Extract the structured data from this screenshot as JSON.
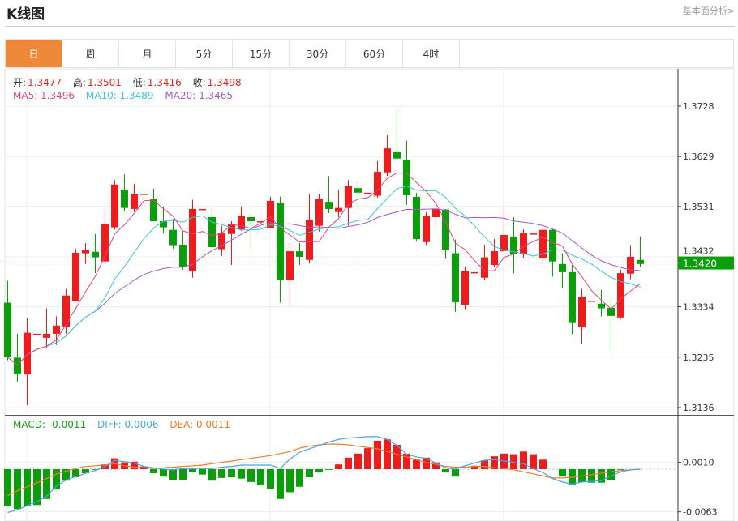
{
  "header": {
    "title": "K线图",
    "link": "基本面分析>"
  },
  "tabs": [
    {
      "label": "日",
      "active": true
    },
    {
      "label": "周"
    },
    {
      "label": "月"
    },
    {
      "label": "5分"
    },
    {
      "label": "15分"
    },
    {
      "label": "30分"
    },
    {
      "label": "60分"
    },
    {
      "label": "4时"
    }
  ],
  "legend": {
    "open_label": "开:",
    "open": "1.3477",
    "high_label": "高:",
    "high": "1.3501",
    "low_label": "低:",
    "low": "1.3416",
    "close_label": "收:",
    "close": "1.3498",
    "ma5": "MA5: 1.3496",
    "ma10": "MA10: 1.3489",
    "ma20": "MA20: 1.3465"
  },
  "macd_legend": {
    "macd": "MACD: -0.0011",
    "diff": "DIFF: 0.0006",
    "dea": "DEA: 0.0011"
  },
  "colors": {
    "up": "#ee1c1c",
    "down": "#0a9e0a",
    "ma5": "#e0457b",
    "ma10": "#3cc6d6",
    "ma20": "#a05bc4",
    "diff": "#4aa3df",
    "dea": "#f07d2a",
    "tab_active": "#f0883a"
  },
  "chart_data": {
    "type": "candlestick",
    "price_axis": {
      "ticks": [
        "1.3728",
        "1.3629",
        "1.3531",
        "1.3432",
        "1.3334",
        "1.3235",
        "1.3136"
      ],
      "range": [
        1.3136,
        1.3728
      ]
    },
    "current_price": "1.3420",
    "ohlc": [
      [
        1.3342,
        1.3385,
        1.3229,
        1.3235
      ],
      [
        1.3234,
        1.3281,
        1.3186,
        1.3203
      ],
      [
        1.3201,
        1.3311,
        1.3141,
        1.3283
      ],
      [
        1.3281,
        1.3281,
        1.3281,
        1.3281
      ],
      [
        1.3273,
        1.3331,
        1.3253,
        1.3281
      ],
      [
        1.3281,
        1.3315,
        1.3259,
        1.3297
      ],
      [
        1.3294,
        1.3369,
        1.3281,
        1.3356
      ],
      [
        1.3346,
        1.3448,
        1.3346,
        1.344
      ],
      [
        1.3439,
        1.3459,
        1.3418,
        1.3445
      ],
      [
        1.3442,
        1.3477,
        1.34,
        1.3431
      ],
      [
        1.3423,
        1.3523,
        1.3423,
        1.3497
      ],
      [
        1.349,
        1.3583,
        1.3486,
        1.3574
      ],
      [
        1.3564,
        1.3594,
        1.3521,
        1.3528
      ],
      [
        1.3526,
        1.3575,
        1.352,
        1.3556
      ],
      [
        1.3556,
        1.3556,
        1.3556,
        1.3556
      ],
      [
        1.3545,
        1.3566,
        1.3502,
        1.3502
      ],
      [
        1.3502,
        1.3531,
        1.3478,
        1.349
      ],
      [
        1.3485,
        1.3507,
        1.3448,
        1.3455
      ],
      [
        1.3456,
        1.3483,
        1.3407,
        1.3412
      ],
      [
        1.3405,
        1.3544,
        1.3391,
        1.3526
      ],
      [
        1.3526,
        1.3526,
        1.3526,
        1.3526
      ],
      [
        1.351,
        1.3528,
        1.3447,
        1.3451
      ],
      [
        1.3447,
        1.3493,
        1.3434,
        1.3478
      ],
      [
        1.3477,
        1.3502,
        1.3416,
        1.3497
      ],
      [
        1.3486,
        1.3531,
        1.3483,
        1.3512
      ],
      [
        1.351,
        1.3517,
        1.3447,
        1.3502
      ],
      [
        1.3502,
        1.3502,
        1.3502,
        1.3502
      ],
      [
        1.3488,
        1.355,
        1.3488,
        1.3542
      ],
      [
        1.3537,
        1.355,
        1.3342,
        1.3386
      ],
      [
        1.3386,
        1.3459,
        1.3334,
        1.3443
      ],
      [
        1.3443,
        1.3459,
        1.3416,
        1.3432
      ],
      [
        1.3426,
        1.3555,
        1.3419,
        1.3505
      ],
      [
        1.3493,
        1.3556,
        1.3482,
        1.3545
      ],
      [
        1.354,
        1.3591,
        1.3518,
        1.3526
      ],
      [
        1.352,
        1.3564,
        1.351,
        1.3528
      ],
      [
        1.3528,
        1.3583,
        1.3493,
        1.3571
      ],
      [
        1.3567,
        1.358,
        1.3525,
        1.3558
      ],
      [
        1.3558,
        1.3558,
        1.3558,
        1.3558
      ],
      [
        1.3552,
        1.362,
        1.3548,
        1.3599
      ],
      [
        1.3598,
        1.3671,
        1.3591,
        1.3645
      ],
      [
        1.3639,
        1.3726,
        1.362,
        1.3625
      ],
      [
        1.3622,
        1.366,
        1.3534,
        1.3553
      ],
      [
        1.355,
        1.3558,
        1.3463,
        1.3467
      ],
      [
        1.3461,
        1.352,
        1.3455,
        1.3513
      ],
      [
        1.351,
        1.3534,
        1.3488,
        1.3526
      ],
      [
        1.3525,
        1.3526,
        1.3428,
        1.3445
      ],
      [
        1.3439,
        1.3466,
        1.3324,
        1.3343
      ],
      [
        1.3338,
        1.3413,
        1.3329,
        1.3404
      ],
      [
        1.3402,
        1.3402,
        1.3402,
        1.3402
      ],
      [
        1.3391,
        1.3456,
        1.3386,
        1.3431
      ],
      [
        1.3416,
        1.3467,
        1.3412,
        1.3443
      ],
      [
        1.3443,
        1.3528,
        1.3439,
        1.3475
      ],
      [
        1.3472,
        1.351,
        1.34,
        1.3437
      ],
      [
        1.3437,
        1.3486,
        1.3429,
        1.3478
      ],
      [
        1.3478,
        1.3478,
        1.3478,
        1.3478
      ],
      [
        1.3429,
        1.3488,
        1.3416,
        1.3485
      ],
      [
        1.3485,
        1.3486,
        1.3393,
        1.3423
      ],
      [
        1.3418,
        1.3439,
        1.337,
        1.3402
      ],
      [
        1.3402,
        1.3416,
        1.328,
        1.3302
      ],
      [
        1.3294,
        1.3369,
        1.3262,
        1.3354
      ],
      [
        1.3346,
        1.3346,
        1.3346,
        1.3346
      ],
      [
        1.334,
        1.3367,
        1.3315,
        1.3331
      ],
      [
        1.3332,
        1.3353,
        1.3248,
        1.3316
      ],
      [
        1.3313,
        1.3407,
        1.331,
        1.34
      ],
      [
        1.3399,
        1.3455,
        1.3388,
        1.3432
      ],
      [
        1.3426,
        1.3472,
        1.3412,
        1.3418
      ]
    ],
    "moving_averages": [
      "MA5",
      "MA10",
      "MA20"
    ],
    "macd": {
      "axis": {
        "ticks": [
          "0.0010",
          "-0.0063"
        ],
        "range": [
          -0.0063,
          0.001
        ]
      },
      "histogram": [
        -0.0054,
        -0.0059,
        -0.0054,
        -0.0053,
        -0.0044,
        -0.003,
        -0.0017,
        -0.0012,
        -0.0006,
        -0.0001,
        0.0007,
        0.0016,
        0.001,
        0.0011,
        0.0004,
        -0.0006,
        -0.0011,
        -0.0016,
        -0.0016,
        -0.0004,
        -0.0008,
        -0.0017,
        -0.0013,
        -0.0012,
        -0.0014,
        -0.0019,
        -0.0024,
        -0.0029,
        -0.0044,
        -0.0034,
        -0.0026,
        -0.0012,
        -0.0005,
        -0.0001,
        0.0007,
        0.0017,
        0.0023,
        0.0031,
        0.0042,
        0.0044,
        0.0036,
        0.0023,
        0.0014,
        0.0017,
        0.001,
        -0.0005,
        -0.0011,
        0,
        0.0005,
        0.0013,
        0.0019,
        0.0023,
        0.0022,
        0.0026,
        0.0022,
        0.0014,
        0,
        -0.0011,
        -0.0023,
        -0.0019,
        -0.002,
        -0.002,
        -0.0016,
        -0.0001,
        0,
        0
      ],
      "diff": [
        -0.0064,
        -0.006,
        -0.0054,
        -0.0048,
        -0.004,
        -0.0025,
        -0.0016,
        -0.0011,
        -0.0006,
        -0.0002,
        0.0004,
        0.0013,
        0.0011,
        0.0009,
        0.0004,
        0.0002,
        0,
        -0.0001,
        0.0001,
        0.0001,
        0.0001,
        0.0001,
        0.0003,
        0.0004,
        0.0006,
        0.0006,
        0.0006,
        0.0006,
        0.0001,
        0.0015,
        0.0025,
        0.003,
        0.0035,
        0.004,
        0.0044,
        0.0046,
        0.0047,
        0.0048,
        0.0048,
        0.0044,
        0.0035,
        0.0022,
        0.0018,
        0.0016,
        0.0009,
        0.0002,
        0,
        0.0005,
        0.0009,
        0.0013,
        0.0014,
        0.0012,
        0.001,
        0.0008,
        0.0001,
        -0.0005,
        -0.0014,
        -0.0019,
        -0.0022,
        -0.0019,
        -0.0018,
        -0.0017,
        -0.001,
        -0.0004,
        -0.0001,
        0
      ],
      "dea": [
        -0.0039,
        -0.0032,
        -0.0026,
        -0.002,
        -0.0014,
        -0.0007,
        -0.0003,
        0.0001,
        0.0004,
        0.0005,
        0.0006,
        0.0008,
        0.0005,
        0.0003,
        0.0002,
        0.0001,
        0.0002,
        0.0003,
        0.0004,
        0.0005,
        0.0006,
        0.0008,
        0.001,
        0.0012,
        0.0014,
        0.0016,
        0.0018,
        0.002,
        0.0023,
        0.0026,
        0.0031,
        0.0034,
        0.0036,
        0.0037,
        0.0037,
        0.0036,
        0.0034,
        0.0032,
        0.003,
        0.0026,
        0.0022,
        0.0018,
        0.0014,
        0.001,
        0.0007,
        0.0004,
        0.0003,
        0.0003,
        0.0004,
        0.0004,
        0.0002,
        0.0001,
        -0.0001,
        -0.0004,
        -0.0007,
        -0.001,
        -0.0013,
        -0.0013,
        -0.0012,
        -0.001,
        -0.0008,
        -0.0006,
        -0.0004,
        -0.0002,
        -0.0001,
        0
      ]
    }
  }
}
